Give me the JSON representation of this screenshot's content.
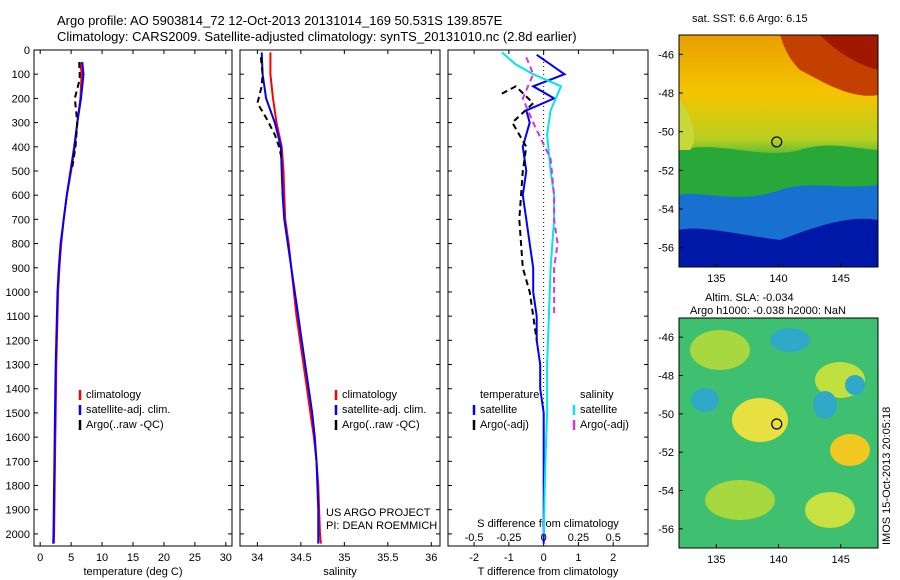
{
  "title_line1": "Argo profile: AO 5903814_72 12-Oct-2013 20131014_169 50.531S 139.857E",
  "title_line2": "Climatology: CARS2009. Satellite-adjusted climatology: synTS_20131010.nc (2.8d earlier)",
  "side_credit": "IMOS 15-Oct-2013 20:05:18",
  "colors": {
    "climatology": "#ff0000",
    "satellite": "#0000ff",
    "argo": "#000000",
    "sal_satellite": "#00e5ee",
    "sal_argo": "#dd33dd"
  },
  "chart_data": [
    {
      "id": "temperature",
      "type": "line",
      "xlabel": "temperature (deg C)",
      "xlim": [
        -1,
        31
      ],
      "ylim": [
        2050,
        0
      ],
      "xticks": [
        0,
        5,
        10,
        15,
        20,
        25,
        30
      ],
      "yticks": [
        0,
        100,
        200,
        300,
        400,
        500,
        600,
        700,
        800,
        900,
        1000,
        1100,
        1200,
        1300,
        1400,
        1500,
        1600,
        1700,
        1800,
        1900,
        2000
      ],
      "legend": [
        "climatology",
        "satellite-adj. clim.",
        "Argo(..raw -QC)"
      ],
      "series": [
        {
          "name": "climatology",
          "style": "solid",
          "color": "#ff0000",
          "points": [
            [
              6.5,
              50
            ],
            [
              6.7,
              100
            ],
            [
              6.5,
              200
            ],
            [
              6.0,
              300
            ],
            [
              5.6,
              400
            ],
            [
              5.0,
              500
            ],
            [
              4.3,
              600
            ],
            [
              3.8,
              700
            ],
            [
              3.4,
              800
            ],
            [
              3.1,
              900
            ],
            [
              2.9,
              1000
            ],
            [
              2.8,
              1100
            ],
            [
              2.7,
              1200
            ],
            [
              2.6,
              1300
            ],
            [
              2.55,
              1400
            ],
            [
              2.5,
              1500
            ],
            [
              2.45,
              1600
            ],
            [
              2.4,
              1700
            ],
            [
              2.35,
              1800
            ],
            [
              2.3,
              1900
            ],
            [
              2.25,
              2000
            ],
            [
              2.2,
              2040
            ]
          ]
        },
        {
          "name": "satellite-adj. clim.",
          "style": "solid",
          "color": "#0000ff",
          "points": [
            [
              6.8,
              50
            ],
            [
              7.0,
              100
            ],
            [
              6.6,
              200
            ],
            [
              6.0,
              300
            ],
            [
              5.5,
              400
            ],
            [
              4.9,
              500
            ],
            [
              4.3,
              600
            ],
            [
              3.8,
              700
            ],
            [
              3.3,
              800
            ],
            [
              3.0,
              900
            ],
            [
              2.8,
              1000
            ],
            [
              2.7,
              1100
            ],
            [
              2.6,
              1200
            ],
            [
              2.5,
              1300
            ],
            [
              2.45,
              1400
            ],
            [
              2.4,
              1500
            ],
            [
              2.35,
              1600
            ],
            [
              2.3,
              1700
            ],
            [
              2.25,
              1800
            ],
            [
              2.2,
              1900
            ],
            [
              2.15,
              2000
            ],
            [
              2.1,
              2040
            ]
          ]
        },
        {
          "name": "Argo(..raw -QC)",
          "style": "dashed",
          "color": "#000000",
          "points": [
            [
              6.3,
              50
            ],
            [
              6.4,
              120
            ],
            [
              5.6,
              200
            ],
            [
              6.0,
              300
            ],
            [
              5.7,
              400
            ],
            [
              5.1,
              500
            ]
          ]
        }
      ]
    },
    {
      "id": "salinity",
      "type": "line",
      "xlabel": "salinity",
      "xlim": [
        33.8,
        36.1
      ],
      "ylim": [
        2050,
        0
      ],
      "xticks": [
        34,
        34.5,
        35,
        35.5,
        36
      ],
      "legend": [
        "climatology",
        "satellite-adj. clim.",
        "Argo(..raw -QC)"
      ],
      "annotations": [
        "US ARGO PROJECT",
        "PI: DEAN ROEMMICH"
      ],
      "series": [
        {
          "name": "climatology",
          "style": "solid",
          "color": "#ff0000",
          "points": [
            [
              34.15,
              10
            ],
            [
              34.15,
              100
            ],
            [
              34.18,
              200
            ],
            [
              34.22,
              300
            ],
            [
              34.28,
              400
            ],
            [
              34.3,
              500
            ],
            [
              34.31,
              600
            ],
            [
              34.32,
              700
            ],
            [
              34.36,
              800
            ],
            [
              34.39,
              900
            ],
            [
              34.42,
              1000
            ],
            [
              34.45,
              1100
            ],
            [
              34.49,
              1200
            ],
            [
              34.53,
              1300
            ],
            [
              34.57,
              1400
            ],
            [
              34.61,
              1500
            ],
            [
              34.65,
              1600
            ],
            [
              34.68,
              1700
            ],
            [
              34.7,
              1800
            ],
            [
              34.71,
              1900
            ],
            [
              34.72,
              2000
            ],
            [
              34.73,
              2040
            ]
          ]
        },
        {
          "name": "satellite-adj. clim.",
          "style": "solid",
          "color": "#0000ff",
          "points": [
            [
              34.05,
              10
            ],
            [
              34.06,
              100
            ],
            [
              34.1,
              200
            ],
            [
              34.2,
              300
            ],
            [
              34.27,
              400
            ],
            [
              34.28,
              500
            ],
            [
              34.29,
              600
            ],
            [
              34.31,
              700
            ],
            [
              34.35,
              800
            ],
            [
              34.39,
              900
            ],
            [
              34.43,
              1000
            ],
            [
              34.47,
              1100
            ],
            [
              34.51,
              1200
            ],
            [
              34.55,
              1300
            ],
            [
              34.59,
              1400
            ],
            [
              34.63,
              1500
            ],
            [
              34.66,
              1600
            ],
            [
              34.68,
              1700
            ],
            [
              34.69,
              1800
            ],
            [
              34.7,
              1900
            ],
            [
              34.7,
              2000
            ],
            [
              34.7,
              2040
            ]
          ]
        },
        {
          "name": "Argo(..raw -QC)",
          "style": "dashed",
          "color": "#000000",
          "points": [
            [
              34.04,
              30
            ],
            [
              34.06,
              100
            ],
            [
              34.05,
              150
            ],
            [
              34.0,
              220
            ],
            [
              34.1,
              280
            ],
            [
              34.2,
              350
            ],
            [
              34.25,
              400
            ],
            [
              34.28,
              450
            ]
          ]
        }
      ]
    },
    {
      "id": "difference",
      "type": "line",
      "xlabel": "T difference from climatology",
      "xlabel_top": "S difference from climatology",
      "xlim": [
        -2.75,
        3
      ],
      "ylim": [
        2050,
        0
      ],
      "xticks": [
        -2,
        -1,
        0,
        1,
        2
      ],
      "xticks_labels": [
        "-2",
        "-1",
        "0",
        "1",
        "2"
      ],
      "sticks": [
        -0.5,
        -0.25,
        0,
        0.25,
        0.5
      ],
      "sticks_labels": [
        "-0.5",
        "-0.25",
        "0",
        "0.25",
        "0.5"
      ],
      "legend_temperature_title": "temperature",
      "legend_salinity_title": "salinity",
      "legend_temperature": [
        "satellite",
        "Argo(-adj)"
      ],
      "legend_salinity": [
        "satellite",
        "Argo(-adj)"
      ],
      "series": [
        {
          "name": "T satellite",
          "style": "solid",
          "color": "#0000ff",
          "points": [
            [
              -0.2,
              20
            ],
            [
              0.6,
              100
            ],
            [
              -0.3,
              150
            ],
            [
              0.3,
              200
            ],
            [
              -0.5,
              250
            ],
            [
              -0.4,
              300
            ],
            [
              -0.6,
              400
            ],
            [
              -0.5,
              500
            ],
            [
              -0.6,
              600
            ],
            [
              -0.5,
              700
            ],
            [
              -0.4,
              800
            ],
            [
              -0.3,
              900
            ],
            [
              -0.3,
              1000
            ],
            [
              -0.2,
              1100
            ],
            [
              -0.2,
              1200
            ],
            [
              -0.1,
              1300
            ],
            [
              -0.1,
              1400
            ],
            [
              0,
              1500
            ],
            [
              0,
              1600
            ],
            [
              0,
              1700
            ],
            [
              0,
              1800
            ],
            [
              0,
              1900
            ],
            [
              0,
              2000
            ],
            [
              0,
              2040
            ]
          ]
        },
        {
          "name": "T Argo(-adj)",
          "style": "dashed",
          "color": "#000000",
          "points": [
            [
              -1.2,
              180
            ],
            [
              -0.8,
              150
            ],
            [
              -0.3,
              220
            ],
            [
              -0.9,
              300
            ],
            [
              -0.5,
              400
            ],
            [
              -0.6,
              500
            ],
            [
              -0.7,
              700
            ],
            [
              -0.6,
              900
            ],
            [
              -0.4,
              1000
            ],
            [
              -0.3,
              1100
            ],
            [
              -0.2,
              1200
            ]
          ]
        },
        {
          "name": "S satellite",
          "style": "solid",
          "color": "#00e5ee",
          "points": [
            [
              -1.2,
              10
            ],
            [
              -0.8,
              60
            ],
            [
              -0.3,
              100
            ],
            [
              0.5,
              150
            ],
            [
              0.2,
              250
            ],
            [
              0.1,
              350
            ],
            [
              0.2,
              500
            ],
            [
              0.3,
              600
            ],
            [
              0.3,
              700
            ],
            [
              0.2,
              900
            ],
            [
              0.15,
              1100
            ],
            [
              0.1,
              1300
            ],
            [
              0.1,
              1500
            ],
            [
              0.05,
              1700
            ],
            [
              0,
              2000
            ]
          ]
        },
        {
          "name": "S Argo(-adj)",
          "style": "dashed",
          "color": "#dd33dd",
          "points": [
            [
              -0.5,
              30
            ],
            [
              -0.3,
              100
            ],
            [
              -0.6,
              200
            ],
            [
              -0.3,
              300
            ],
            [
              0.2,
              450
            ],
            [
              0.3,
              600
            ],
            [
              0.3,
              700
            ],
            [
              0.4,
              800
            ],
            [
              0.3,
              900
            ],
            [
              0.3,
              1000
            ],
            [
              0.3,
              1100
            ]
          ]
        }
      ]
    },
    {
      "id": "sst_map",
      "type": "heatmap",
      "title": "sat. SST: 6.6 Argo: 6.15",
      "xlim": [
        132,
        148
      ],
      "ylim": [
        -57,
        -45
      ],
      "xticks": [
        135,
        140,
        145
      ],
      "yticks": [
        -46,
        -48,
        -50,
        -52,
        -54,
        -56
      ],
      "marker": [
        139.857,
        -50.531
      ]
    },
    {
      "id": "sla_map",
      "type": "heatmap",
      "title_line1": "Altim. SLA: -0.034",
      "title_line2": "Argo h1000: -0.038 h2000: NaN",
      "xlim": [
        132,
        148
      ],
      "ylim": [
        -57,
        -45
      ],
      "xticks": [
        135,
        140,
        145
      ],
      "yticks": [
        -46,
        -48,
        -50,
        -52,
        -54,
        -56
      ],
      "marker": [
        139.857,
        -50.531
      ]
    }
  ]
}
